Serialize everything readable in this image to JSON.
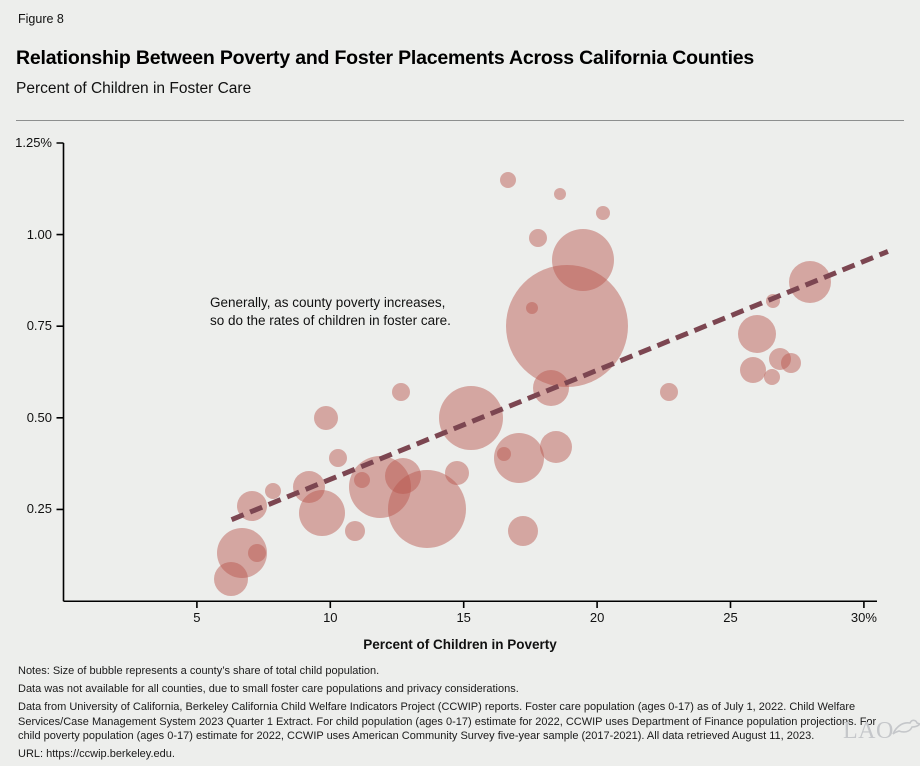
{
  "figure_label": "Figure 8",
  "title": "Relationship Between Poverty and Foster Placements Across California Counties",
  "subtitle": "Percent of Children in Foster Care",
  "annotation": {
    "line1": "Generally, as county poverty increases,",
    "line2": "so do the rates of children in foster care."
  },
  "chart_data": {
    "type": "scatter",
    "subtype": "bubble",
    "title": "Percent of Children in Foster Care",
    "xlabel": "Percent of Children in Poverty",
    "ylabel": "Percent of Children in Foster Care",
    "xlim": [
      0,
      30.5
    ],
    "ylim": [
      0,
      1.255
    ],
    "grid": false,
    "x_tick_values": [
      5,
      10,
      15,
      20,
      25,
      30
    ],
    "x_ticks": [
      "5",
      "10",
      "15",
      "20",
      "25",
      "30%"
    ],
    "y_tick_values": [
      1.25,
      1.0,
      0.75,
      0.5,
      0.25
    ],
    "y_ticks": [
      "1.25%",
      "1.00",
      "0.75",
      "0.50",
      "0.25"
    ],
    "bubble_color": "rgba(184,84,76,0.47)",
    "trend_color": "#7c4651",
    "axis_color": "#000000",
    "bubbles": [
      {
        "x": 6.68,
        "y": 0.13,
        "r": 25
      },
      {
        "x": 7.25,
        "y": 0.13,
        "r": 9
      },
      {
        "x": 6.27,
        "y": 0.06,
        "r": 17
      },
      {
        "x": 7.06,
        "y": 0.26,
        "r": 15
      },
      {
        "x": 7.85,
        "y": 0.3,
        "r": 8
      },
      {
        "x": 9.19,
        "y": 0.31,
        "r": 16
      },
      {
        "x": 9.68,
        "y": 0.24,
        "r": 23
      },
      {
        "x": 9.83,
        "y": 0.5,
        "r": 12
      },
      {
        "x": 10.28,
        "y": 0.39,
        "r": 9
      },
      {
        "x": 10.92,
        "y": 0.19,
        "r": 10
      },
      {
        "x": 11.18,
        "y": 0.33,
        "r": 8
      },
      {
        "x": 11.85,
        "y": 0.31,
        "r": 31
      },
      {
        "x": 12.71,
        "y": 0.34,
        "r": 18
      },
      {
        "x": 12.64,
        "y": 0.57,
        "r": 9
      },
      {
        "x": 13.61,
        "y": 0.25,
        "r": 39
      },
      {
        "x": 14.74,
        "y": 0.35,
        "r": 12
      },
      {
        "x": 15.26,
        "y": 0.5,
        "r": 32
      },
      {
        "x": 16.5,
        "y": 0.4,
        "r": 7
      },
      {
        "x": 17.06,
        "y": 0.39,
        "r": 25
      },
      {
        "x": 17.21,
        "y": 0.19,
        "r": 15
      },
      {
        "x": 17.55,
        "y": 0.8,
        "r": 6
      },
      {
        "x": 16.65,
        "y": 1.15,
        "r": 8
      },
      {
        "x": 17.77,
        "y": 0.99,
        "r": 9
      },
      {
        "x": 18.26,
        "y": 0.58,
        "r": 18
      },
      {
        "x": 18.45,
        "y": 0.42,
        "r": 16
      },
      {
        "x": 18.6,
        "y": 1.11,
        "r": 6
      },
      {
        "x": 18.86,
        "y": 0.75,
        "r": 61
      },
      {
        "x": 19.46,
        "y": 0.93,
        "r": 31
      },
      {
        "x": 20.21,
        "y": 1.06,
        "r": 7
      },
      {
        "x": 22.71,
        "y": 0.57,
        "r": 9
      },
      {
        "x": 25.86,
        "y": 0.63,
        "r": 13
      },
      {
        "x": 26.01,
        "y": 0.73,
        "r": 19
      },
      {
        "x": 26.57,
        "y": 0.61,
        "r": 8
      },
      {
        "x": 26.61,
        "y": 0.82,
        "r": 7
      },
      {
        "x": 26.87,
        "y": 0.66,
        "r": 11
      },
      {
        "x": 27.25,
        "y": 0.65,
        "r": 10
      },
      {
        "x": 27.99,
        "y": 0.87,
        "r": 21
      }
    ],
    "trend_line": {
      "x1": 6.3,
      "y1": 0.222,
      "x2": 30.9,
      "y2": 0.954,
      "style": "dashed"
    },
    "legend": null
  },
  "notes": {
    "line1": "Notes: Size of bubble represents a county’s share of total child population.",
    "line2": "Data was not available for all counties, due to small foster care populations and privacy considerations.",
    "body": "Data from University of California, Berkeley California Child Welfare Indicators Project (CCWIP) reports. Foster care population (ages 0-17) as of July 1, 2022. Child Welfare Services/Case Management System 2023 Quarter 1 Extract. For child population (ages 0-17) estimate for 2022, CCWIP uses Department of Finance population projections. For child poverty population (ages 0-17) estimate for 2022, CCWIP uses American Community Survey five-year sample (2017-2021). All data retrieved August 11, 2023.",
    "url": "URL: https://ccwip.berkeley.edu."
  },
  "logo": {
    "text": "LAO"
  }
}
